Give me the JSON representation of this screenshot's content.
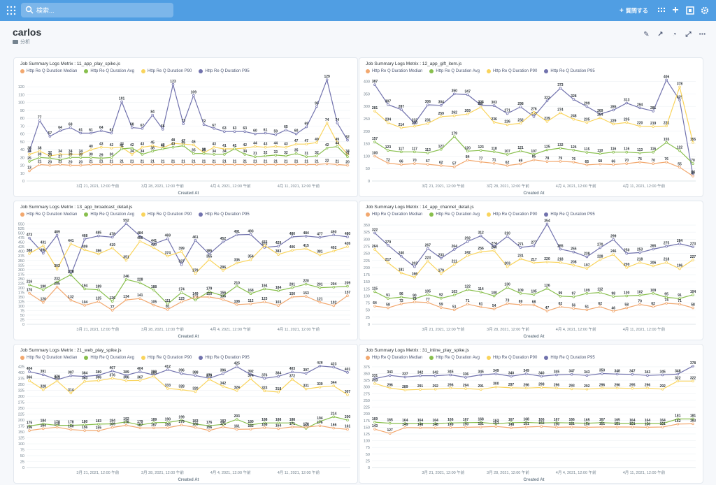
{
  "topbar": {
    "search_placeholder": "検索...",
    "ask_label": "質問する"
  },
  "dashboard": {
    "title": "carlos",
    "collection": "分析"
  },
  "icons": {
    "logo": "metabase-logo-icon",
    "search": "search-icon",
    "plus": "plus-icon",
    "apps": "grid-icon",
    "collection": "folder-icon"
  },
  "colors": {
    "median": "#f2a86f",
    "avg": "#88bf4d",
    "p90": "#f9d45c",
    "p95": "#7172ad",
    "topbar": "#509ee3"
  },
  "charts": [
    {
      "title": "Job Summary Logs Metrix : 11_app_play_spike.js",
      "legend": [
        "Http Re Q Duration Median",
        "Http Re Q Duration Avg",
        "Http Re Q Duration P90",
        "Http Re Q Duration P95"
      ],
      "xticks": [
        "3月 21, 2021, 12:00 午前",
        "3月 28, 2021, 12:00 午前",
        "4月 4, 2021, 12:00 午前",
        "4月 11, 2021, 12:00 午前"
      ],
      "xlabel": "Created At",
      "ymax": 130,
      "yticks": [
        0,
        10,
        20,
        30,
        40,
        50,
        60,
        70,
        80,
        90,
        100,
        110,
        120
      ]
    },
    {
      "title": "Job Summary Logs Metrix : 12_app_gift_item.js",
      "legend": [
        "Http Re Q Duration Median",
        "Http Re Q Duration Avg",
        "Http Re Q Duration P90",
        "Http Re Q Duration P95"
      ],
      "xticks": [
        "3月 21, 2021, 12:00 午前",
        "3月 28, 2021, 12:00 午前",
        "4月 4, 2021, 12:00 午前",
        "4月 11, 2021, 12:00 午前"
      ],
      "xlabel": "Created At",
      "ymax": 410,
      "yticks": [
        0,
        50,
        100,
        150,
        200,
        250,
        300,
        350,
        400
      ]
    },
    {
      "title": "Job Summary Logs Metrix : 13_app_broadcast_detail.js",
      "legend": [
        "Http Re Q Duration Median",
        "Http Re Q Duration Avg",
        "Http Re Q Duration P90",
        "Http Re Q Duration P95"
      ],
      "xticks": [
        "3月 21, 2021, 12:00 午前",
        "3月 28, 2021, 12:00 午前",
        "4月 4, 2021, 12:00 午前",
        "4月 11, 2021, 12:00 午前"
      ],
      "xlabel": "Created At",
      "ymax": 560,
      "yticks": [
        0,
        25,
        50,
        75,
        100,
        125,
        150,
        175,
        200,
        225,
        250,
        275,
        300,
        325,
        350,
        375,
        400,
        425,
        450,
        475,
        500,
        525,
        550
      ]
    },
    {
      "title": "Job Summary Logs Metrix : 14_app_channel_detail.js",
      "legend": [
        "Http Re Q Duration Median",
        "Http Re Q Duration Avg",
        "Http Re Q Duration P90",
        "Http Re Q Duration P95"
      ],
      "xticks": [
        "3月 21, 2021, 12:00 午前",
        "3月 28, 2021, 12:00 午前",
        "4月 4, 2021, 12:00 午前",
        "4月 11, 2021, 12:00 午前"
      ],
      "xlabel": "Created At",
      "ymax": 360,
      "yticks": [
        0,
        25,
        50,
        75,
        100,
        125,
        150,
        175,
        200,
        225,
        250,
        275,
        300,
        325,
        350
      ]
    },
    {
      "title": "Job Summary Logs Metrix : 21_web_play_spike.js",
      "legend": [
        "Http Re Q Duration Median",
        "Http Re Q Duration Avg",
        "Http Re Q Duration P90",
        "Http Re Q Duration P95"
      ],
      "xticks": [
        "3月 21, 2021, 12:00 午前",
        "3月 28, 2021, 12:00 午前",
        "4月 4, 2021, 12:00 午前",
        "4月 11, 2021, 12:00 午前"
      ],
      "xlabel": "Created At",
      "ymax": 430,
      "yticks": [
        0,
        25,
        50,
        75,
        100,
        125,
        150,
        175,
        200,
        225,
        250,
        275,
        300,
        325,
        350,
        375,
        400,
        425
      ]
    },
    {
      "title": "Job Summary Logs Metrix : 31_inline_play_spike.js",
      "legend": [
        "Http Re Q Duration Median",
        "Http Re Q Duration Avg",
        "Http Re Q Duration P90",
        "Http Re Q Duration P95"
      ],
      "xticks": [
        "3月 21, 2021, 12:00 午前",
        "3月 28, 2021, 12:00 午前",
        "4月 4, 2021, 12:00 午前",
        "4月 11, 2021, 12:00 午前"
      ],
      "xlabel": "Created At",
      "ymax": 380,
      "yticks": [
        0,
        25,
        50,
        75,
        100,
        125,
        150,
        175,
        200,
        225,
        250,
        275,
        300,
        325,
        350,
        375
      ]
    }
  ],
  "chart_data": [
    {
      "type": "line",
      "title": "Job Summary Logs Metrix : 11_app_play_spike.js",
      "xlabel": "Created At",
      "ylim": [
        0,
        130
      ],
      "series": [
        {
          "name": "Http Re Q Duration P95",
          "values": [
            38,
            77,
            57,
            64,
            68,
            61,
            61,
            64,
            61,
            101,
            68,
            67,
            84,
            66,
            123,
            73,
            109,
            72,
            67,
            63,
            63,
            63,
            60,
            61,
            59,
            65,
            60,
            69,
            95,
            129,
            74,
            52
          ]
        },
        {
          "name": "Http Re Q Duration P90",
          "values": [
            34,
            38,
            32,
            34,
            34,
            34,
            40,
            43,
            42,
            43,
            34,
            43,
            45,
            42,
            48,
            47,
            46,
            36,
            43,
            41,
            41,
            42,
            44,
            43,
            44,
            43,
            47,
            47,
            49,
            74,
            49,
            34
          ]
        },
        {
          "name": "Http Re Q Duration Avg",
          "values": [
            25,
            30,
            29,
            27,
            30,
            30,
            30,
            29,
            30,
            41,
            42,
            34,
            38,
            41,
            43,
            45,
            35,
            35,
            34,
            34,
            41,
            34,
            31,
            32,
            33,
            32,
            35,
            31,
            32,
            42,
            44,
            31
          ]
        },
        {
          "name": "Http Re Q Duration Median",
          "values": [
            13,
            21,
            20,
            21,
            20,
            20,
            21,
            21,
            21,
            21,
            21,
            21,
            21,
            21,
            21,
            21,
            21,
            21,
            21,
            21,
            21,
            21,
            21,
            21,
            21,
            21,
            21,
            21,
            21,
            22,
            21,
            20
          ]
        }
      ]
    },
    {
      "type": "line",
      "title": "Job Summary Logs Metrix : 12_app_gift_item.js",
      "xlabel": "Created At",
      "ylim": [
        0,
        410
      ],
      "series": [
        {
          "name": "Http Re Q Duration P95",
          "values": [
            387,
            307,
            287,
            232,
            306,
            304,
            350,
            347,
            305,
            303,
            271,
            298,
            259,
            322,
            373,
            328,
            299,
            269,
            285,
            313,
            294,
            281,
            406,
            325,
            24
          ]
        },
        {
          "name": "Http Re Q Duration P90",
          "values": [
            281,
            234,
            214,
            220,
            231,
            259,
            262,
            269,
            297,
            236,
            226,
            232,
            276,
            239,
            274,
            248,
            235,
            254,
            229,
            235,
            220,
            219,
            221,
            378,
            155
          ]
        },
        {
          "name": "Http Re Q Duration Avg",
          "values": [
            157,
            123,
            117,
            117,
            113,
            127,
            179,
            120,
            123,
            118,
            107,
            121,
            107,
            125,
            132,
            124,
            115,
            110,
            116,
            116,
            113,
            116,
            155,
            122,
            70
          ]
        },
        {
          "name": "Http Re Q Duration Median",
          "values": [
            100,
            72,
            66,
            70,
            67,
            62,
            57,
            84,
            77,
            71,
            62,
            69,
            85,
            78,
            79,
            76,
            65,
            68,
            66,
            70,
            76,
            70,
            76,
            55,
            20
          ]
        }
      ]
    },
    {
      "type": "line",
      "title": "Job Summary Logs Metrix : 13_app_broadcast_detail.js",
      "xlabel": "Created At",
      "ylim": [
        0,
        560
      ],
      "series": [
        {
          "name": "Http Re Q Duration P95",
          "values": [
            473,
            390,
            489,
            270,
            468,
            485,
            478,
            552,
            484,
            441,
            469,
            327,
            461,
            385,
            452,
            491,
            493,
            422,
            429,
            480,
            484,
            477,
            490,
            480
          ]
        },
        {
          "name": "Http Re Q Duration P90",
          "values": [
            388,
            431,
            303,
            441,
            409,
            386,
            419,
            351,
            456,
            420,
            374,
            399,
            279,
            355,
            296,
            336,
            354,
            433,
            383,
            406,
            415,
            381,
            402,
            426
          ]
        },
        {
          "name": "Http Re Q Duration Avg",
          "values": [
            216,
            190,
            232,
            272,
            194,
            189,
            126,
            246,
            228,
            188,
            111,
            174,
            133,
            179,
            156,
            210,
            168,
            194,
            184,
            201,
            220,
            201,
            204,
            209
          ]
        },
        {
          "name": "Http Re Q Duration Median",
          "values": [
            170,
            120,
            205,
            132,
            104,
            125,
            77,
            134,
            141,
            105,
            81,
            123,
            149,
            150,
            136,
            108,
            112,
            123,
            103,
            150,
            153,
            121,
            102,
            157
          ]
        }
      ]
    },
    {
      "type": "line",
      "title": "Job Summary Logs Metrix : 14_app_channel_detail.js",
      "xlabel": "Created At",
      "ylim": [
        0,
        360
      ],
      "series": [
        {
          "name": "Http Re Q Duration P95",
          "values": [
            322,
            279,
            240,
            203,
            267,
            233,
            264,
            292,
            312,
            274,
            310,
            271,
            277,
            354,
            265,
            255,
            238,
            270,
            299,
            250,
            253,
            265,
            275,
            284,
            273
          ]
        },
        {
          "name": "Http Re Q Duration P90",
          "values": [
            264,
            217,
            181,
            166,
            223,
            179,
            211,
            242,
            256,
            260,
            203,
            231,
            217,
            220,
            218,
            208,
            197,
            228,
            246,
            200,
            218,
            206,
            218,
            196,
            227
          ]
        },
        {
          "name": "Http Re Q Duration Avg",
          "values": [
            115,
            91,
            96,
            90,
            105,
            92,
            103,
            122,
            114,
            100,
            130,
            109,
            105,
            126,
            99,
            97,
            109,
            112,
            98,
            100,
            102,
            109,
            95,
            91,
            104
          ]
        },
        {
          "name": "Http Re Q Duration Median",
          "values": [
            64,
            58,
            72,
            79,
            77,
            59,
            51,
            71,
            61,
            54,
            73,
            69,
            68,
            47,
            62,
            56,
            51,
            62,
            46,
            58,
            70,
            62,
            74,
            71,
            58
          ]
        }
      ]
    },
    {
      "type": "line",
      "title": "Job Summary Logs Metrix : 21_web_play_spike.js",
      "xlabel": "Created At",
      "ylim": [
        0,
        430
      ],
      "series": [
        {
          "name": "Http Re Q Duration P95",
          "values": [
            404,
            391,
            370,
            387,
            384,
            389,
            407,
            389,
            404,
            390,
            412,
            396,
            388,
            376,
            396,
            425,
            392,
            376,
            384,
            403,
            397,
            428,
            423,
            401
          ]
        },
        {
          "name": "Http Re Q Duration P90",
          "values": [
            366,
            328,
            365,
            314,
            363,
            366,
            376,
            366,
            367,
            385,
            333,
            328,
            320,
            372,
            342,
            324,
            374,
            323,
            318,
            372,
            331,
            339,
            344,
            307
          ]
        },
        {
          "name": "Http Re Q Duration Avg",
          "values": [
            175,
            184,
            178,
            178,
            180,
            183,
            184,
            192,
            179,
            189,
            190,
            199,
            183,
            176,
            182,
            203,
            180,
            188,
            188,
            188,
            165,
            194,
            214,
            200
          ]
        },
        {
          "name": "Http Re Q Duration Median",
          "values": [
            156,
            164,
            170,
            160,
            156,
            155,
            169,
            178,
            167,
            167,
            168,
            179,
            169,
            156,
            171,
            161,
            162,
            168,
            164,
            171,
            170,
            176,
            166,
            161
          ]
        }
      ]
    },
    {
      "type": "line",
      "title": "Job Summary Logs Metrix : 31_inline_play_spike.js",
      "xlabel": "Created At",
      "ylim": [
        0,
        380
      ],
      "series": [
        {
          "name": "Http Re Q Duration P95",
          "values": [
            331,
            343,
            337,
            342,
            342,
            345,
            336,
            345,
            349,
            340,
            349,
            340,
            345,
            347,
            343,
            350,
            348,
            347,
            343,
            345,
            348,
            378
          ]
        },
        {
          "name": "Http Re Q Duration P90",
          "values": [
            313,
            296,
            289,
            291,
            292,
            296,
            294,
            291,
            300,
            297,
            296,
            298,
            296,
            293,
            292,
            296,
            296,
            295,
            296,
            292,
            322,
            322
          ]
        },
        {
          "name": "Http Re Q Duration Avg",
          "values": [
            169,
            165,
            164,
            164,
            164,
            166,
            167,
            168,
            163,
            167,
            168,
            166,
            167,
            166,
            165,
            167,
            165,
            164,
            164,
            164,
            181,
            181
          ]
        },
        {
          "name": "Http Re Q Duration Median",
          "values": [
            143,
            127,
            149,
            148,
            148,
            149,
            150,
            151,
            153,
            148,
            151,
            153,
            150,
            151,
            150,
            151,
            151,
            151,
            150,
            151,
            162,
            163
          ]
        }
      ]
    }
  ]
}
